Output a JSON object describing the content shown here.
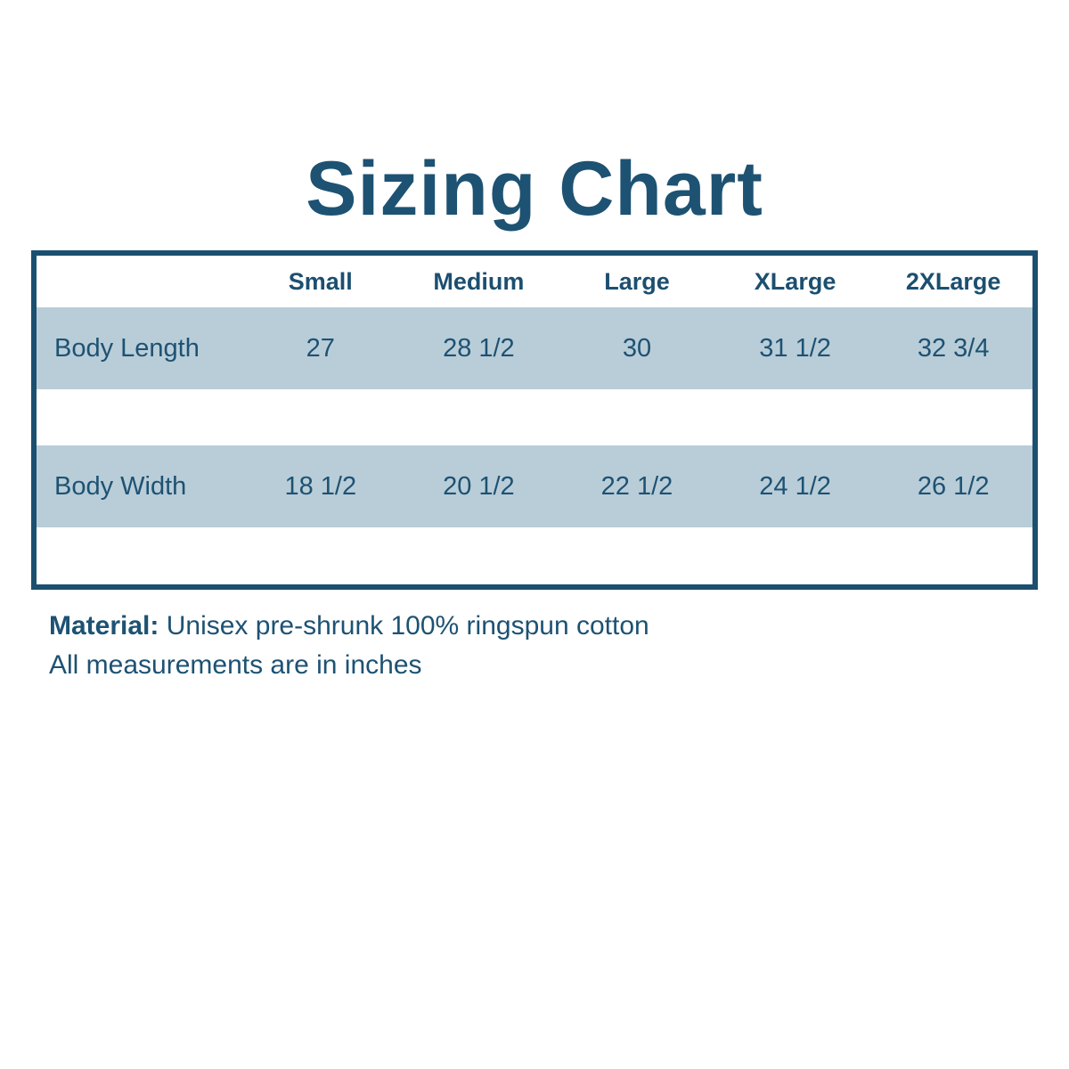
{
  "title": "Sizing Chart",
  "table": {
    "columns": [
      "Small",
      "Medium",
      "Large",
      "XLarge",
      "2XLarge"
    ],
    "rows": [
      {
        "label": "Body Length",
        "values": [
          "27",
          "28 1/2",
          "30",
          "31 1/2",
          "32 3/4"
        ]
      },
      {
        "label": "Body Width",
        "values": [
          "18 1/2",
          "20 1/2",
          "22 1/2",
          "24 1/2",
          "26 1/2"
        ]
      }
    ]
  },
  "notes": {
    "material_label": "Material:",
    "material_value": "Unisex pre-shrunk 100% ringspun cotton",
    "measurements_note": "All measurements are in inches"
  },
  "colors": {
    "text": "#1d5273",
    "header_text": "#1b4f70",
    "band": "#b9cdd8",
    "border": "#1b4f70",
    "background": "#ffffff"
  },
  "chart_data": {
    "type": "table",
    "title": "Sizing Chart",
    "columns": [
      "",
      "Small",
      "Medium",
      "Large",
      "XLarge",
      "2XLarge"
    ],
    "rows": [
      [
        "Body Length",
        "27",
        "28 1/2",
        "30",
        "31 1/2",
        "32 3/4"
      ],
      [
        "Body Width",
        "18 1/2",
        "20 1/2",
        "22 1/2",
        "24 1/2",
        "26 1/2"
      ]
    ],
    "rows_numeric": [
      {
        "name": "Body Length",
        "values": [
          27,
          28.5,
          30,
          31.5,
          32.75
        ]
      },
      {
        "name": "Body Width",
        "values": [
          18.5,
          20.5,
          22.5,
          24.5,
          26.5
        ]
      }
    ],
    "units": "inches",
    "annotations": [
      "Material: Unisex pre-shrunk 100% ringspun cotton",
      "All measurements are in inches"
    ]
  }
}
